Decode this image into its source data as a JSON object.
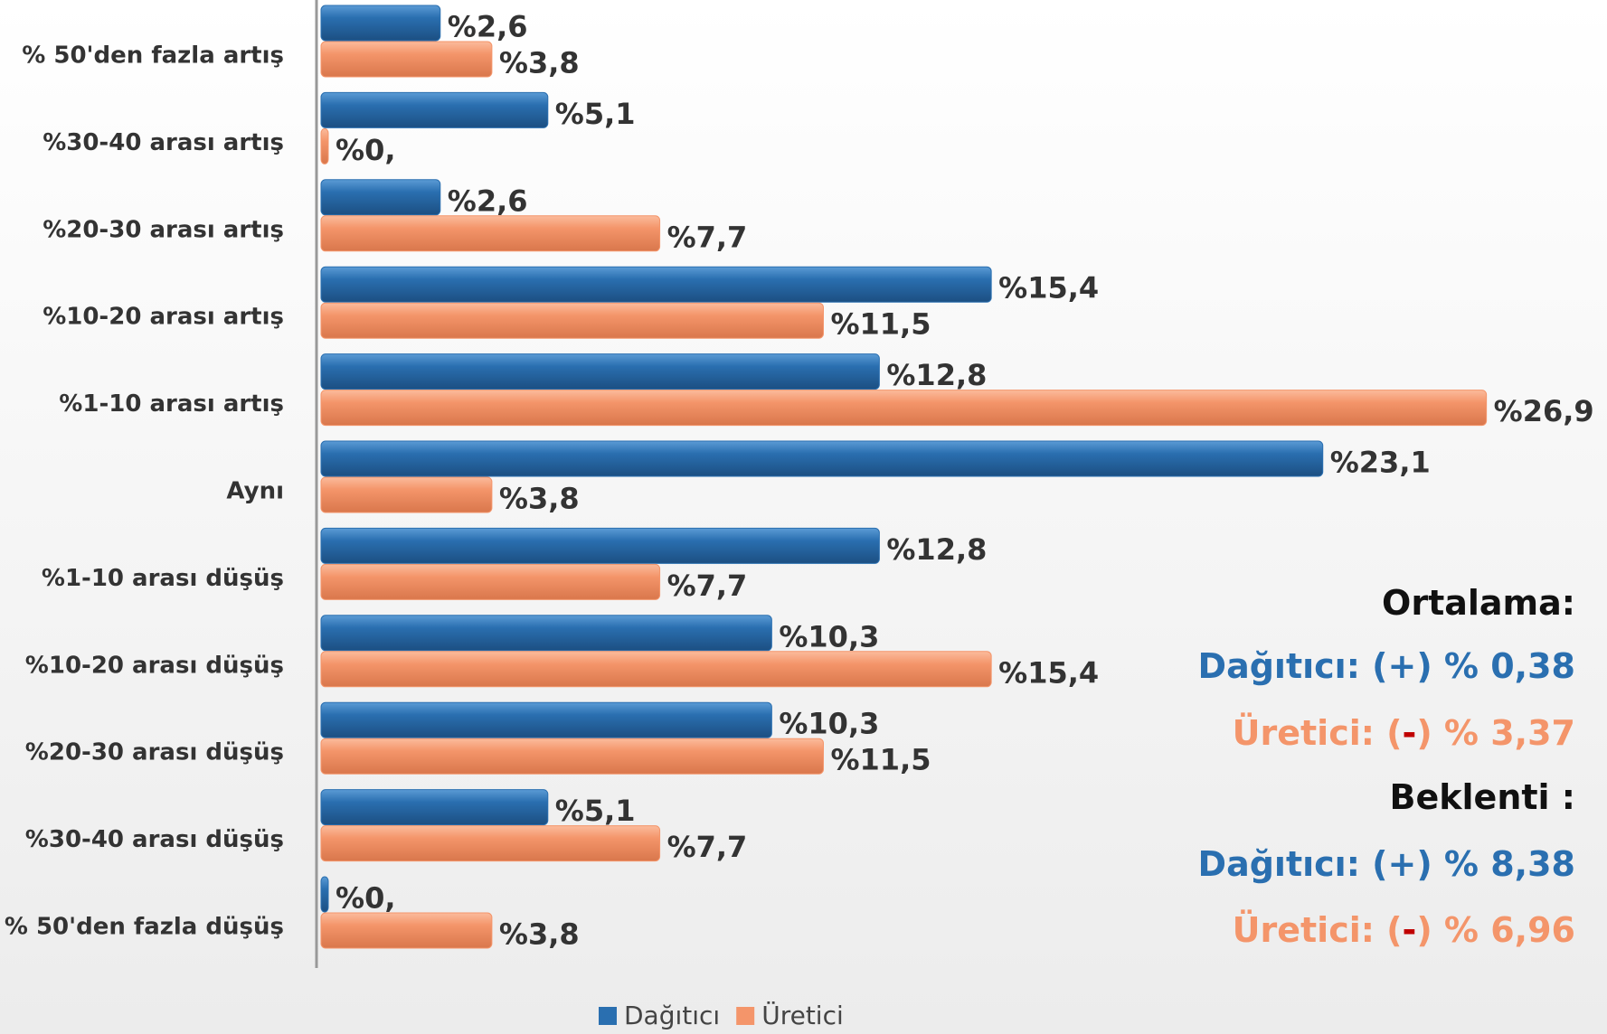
{
  "chart_data": {
    "type": "bar",
    "orientation": "horizontal",
    "categories": [
      "% 50'den fazla artış",
      "%30-40 arası artış",
      "%20-30 arası artış",
      "%10-20 arası artış",
      "%1-10 arası artış",
      "Aynı",
      "%1-10 arası düşüş",
      "%10-20 arası düşüş",
      "%20-30 arası düşüş",
      "%30-40 arası düşüş",
      "% 50'den fazla düşüş"
    ],
    "series": [
      {
        "name": "Dağıtıcı",
        "color": "#2a6fb0",
        "values": [
          2.6,
          5.1,
          2.6,
          15.4,
          12.8,
          23.1,
          12.8,
          10.3,
          10.3,
          5.1,
          0
        ],
        "value_labels": [
          "%2,6",
          "%5,1",
          "%2,6",
          "%15,4",
          "%12,8",
          "%23,1",
          "%12,8",
          "%10,3",
          "%10,3",
          "%5,1",
          "%0,"
        ]
      },
      {
        "name": "Üretici",
        "color": "#f4956a",
        "values": [
          3.8,
          0,
          7.7,
          11.5,
          26.9,
          3.8,
          7.7,
          15.4,
          11.5,
          7.7,
          3.8
        ],
        "value_labels": [
          "%3,8",
          "%0,",
          "%7,7",
          "%11,5",
          "%26,9",
          "%3,8",
          "%7,7",
          "%15,4",
          "%11,5",
          "%7,7",
          "%3,8"
        ]
      }
    ],
    "xlim": [
      0,
      28
    ],
    "legend": "bottom",
    "annotations": [
      {
        "parts": [
          {
            "text": "Ortalama:",
            "color": "#111111"
          }
        ]
      },
      {
        "parts": [
          {
            "text": "Dağıtıcı: (+) % 0,38",
            "color": "#2a6fb0"
          }
        ]
      },
      {
        "parts": [
          {
            "text": "Üretici:  (",
            "color": "#f4956a"
          },
          {
            "text": "-",
            "color": "#c00000"
          },
          {
            "text": ") % 3,37",
            "color": "#f4956a"
          }
        ]
      },
      {
        "parts": [
          {
            "text": "Beklenti :",
            "color": "#111111"
          }
        ]
      },
      {
        "parts": [
          {
            "text": "Dağıtıcı: (+) %  8,38",
            "color": "#2a6fb0"
          }
        ]
      },
      {
        "parts": [
          {
            "text": "Üretici: (",
            "color": "#f4956a"
          },
          {
            "text": "-",
            "color": "#c00000"
          },
          {
            "text": ") % 6,96",
            "color": "#f4956a"
          }
        ]
      }
    ]
  }
}
